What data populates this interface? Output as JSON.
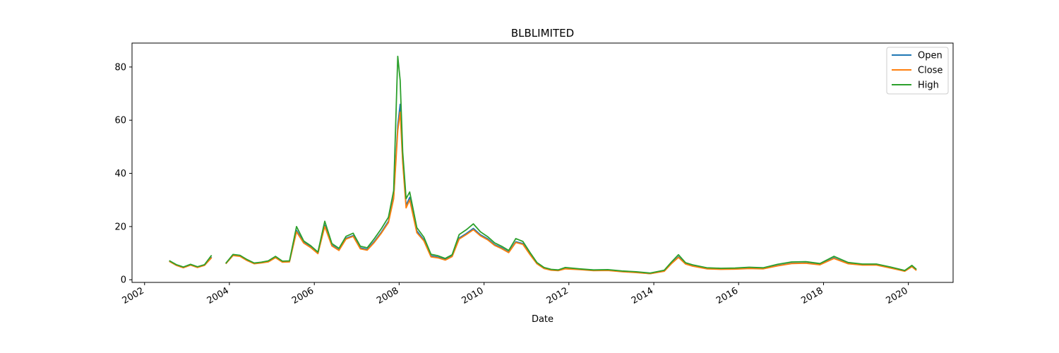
{
  "chart_data": {
    "type": "line",
    "title": "BLBLIMITED",
    "xlabel": "Date",
    "ylabel": "",
    "xlim": [
      "2001-09-15",
      "2021-01-20"
    ],
    "ylim": [
      -1.0,
      89.0
    ],
    "x_ticks": [
      "2002",
      "2004",
      "2006",
      "2008",
      "2010",
      "2012",
      "2014",
      "2016",
      "2018",
      "2020"
    ],
    "y_ticks": [
      0,
      20,
      40,
      60,
      80
    ],
    "legend_position": "top-right",
    "grid": false,
    "colors": {
      "Open": "#1f77b4",
      "Close": "#ff7f0e",
      "High": "#2ca02c"
    },
    "data_gaps": [
      [
        "2003-09-01",
        "2003-12-01"
      ]
    ],
    "dates": [
      "2002-08-01",
      "2002-10-01",
      "2002-12-01",
      "2003-02-01",
      "2003-04-01",
      "2003-06-01",
      "2003-08-01",
      "2003-12-01",
      "2004-02-01",
      "2004-04-01",
      "2004-06-01",
      "2004-08-01",
      "2004-10-01",
      "2004-12-01",
      "2005-02-01",
      "2005-04-01",
      "2005-06-01",
      "2005-08-01",
      "2005-10-01",
      "2005-12-01",
      "2006-02-01",
      "2006-04-01",
      "2006-06-01",
      "2006-08-01",
      "2006-10-01",
      "2006-12-01",
      "2007-02-01",
      "2007-04-01",
      "2007-06-01",
      "2007-08-01",
      "2007-10-01",
      "2007-11-15",
      "2007-12-20",
      "2008-01-10",
      "2008-02-01",
      "2008-03-01",
      "2008-04-01",
      "2008-06-01",
      "2008-08-01",
      "2008-10-01",
      "2008-12-01",
      "2009-02-01",
      "2009-04-01",
      "2009-06-01",
      "2009-08-01",
      "2009-10-01",
      "2009-12-01",
      "2010-02-01",
      "2010-04-01",
      "2010-06-01",
      "2010-08-01",
      "2010-10-01",
      "2010-12-01",
      "2011-02-01",
      "2011-04-01",
      "2011-06-01",
      "2011-08-01",
      "2011-10-01",
      "2011-12-01",
      "2012-04-01",
      "2012-08-01",
      "2012-12-01",
      "2013-04-01",
      "2013-08-01",
      "2013-12-01",
      "2014-04-01",
      "2014-06-01",
      "2014-08-01",
      "2014-10-01",
      "2014-12-01",
      "2015-04-01",
      "2015-08-01",
      "2015-12-01",
      "2016-04-01",
      "2016-08-01",
      "2016-12-01",
      "2017-04-01",
      "2017-08-01",
      "2017-12-01",
      "2018-04-01",
      "2018-08-01",
      "2018-12-01",
      "2019-04-01",
      "2019-08-01",
      "2019-12-01",
      "2020-02-01",
      "2020-03-10"
    ],
    "series": [
      {
        "name": "Open",
        "values": [
          7.0,
          5.5,
          4.6,
          5.6,
          4.7,
          5.5,
          8.5,
          6.0,
          9.2,
          8.9,
          7.3,
          6.1,
          6.4,
          6.8,
          8.4,
          6.7,
          6.8,
          18.6,
          14.1,
          12.3,
          10.0,
          20.5,
          13.0,
          11.2,
          15.6,
          16.6,
          12.0,
          11.4,
          14.4,
          17.9,
          22.0,
          31.0,
          58.0,
          66.0,
          45.0,
          28.0,
          31.0,
          18.4,
          15.0,
          9.0,
          8.5,
          7.6,
          8.9,
          15.7,
          17.4,
          19.3,
          16.9,
          15.4,
          13.2,
          12.0,
          10.4,
          14.3,
          13.6,
          9.6,
          6.1,
          4.3,
          3.7,
          3.5,
          4.2,
          3.9,
          3.5,
          3.6,
          3.1,
          2.8,
          2.3,
          3.3,
          6.1,
          8.6,
          6.0,
          5.2,
          4.2,
          4.0,
          4.1,
          4.3,
          4.2,
          5.3,
          6.2,
          6.3,
          5.7,
          8.2,
          6.1,
          5.6,
          5.6,
          4.5,
          3.3,
          5.0,
          3.6
        ]
      },
      {
        "name": "Close",
        "values": [
          6.9,
          5.4,
          4.5,
          5.5,
          4.6,
          5.4,
          8.3,
          6.0,
          9.1,
          8.8,
          7.2,
          6.0,
          6.3,
          6.7,
          8.3,
          6.6,
          6.7,
          18.0,
          13.8,
          12.1,
          9.8,
          20.0,
          12.7,
          11.0,
          15.3,
          16.3,
          11.6,
          11.1,
          14.0,
          17.5,
          21.5,
          30.5,
          56.0,
          63.0,
          44.0,
          27.0,
          30.0,
          17.7,
          14.6,
          8.6,
          8.2,
          7.4,
          8.7,
          15.3,
          17.0,
          18.8,
          16.5,
          15.0,
          12.9,
          11.7,
          10.2,
          14.0,
          13.3,
          9.4,
          6.0,
          4.2,
          3.6,
          3.4,
          4.1,
          3.8,
          3.4,
          3.5,
          3.0,
          2.7,
          2.3,
          3.2,
          6.0,
          8.4,
          5.9,
          5.1,
          4.1,
          3.9,
          4.0,
          4.2,
          4.1,
          5.2,
          6.1,
          6.2,
          5.6,
          8.0,
          6.0,
          5.5,
          5.5,
          4.4,
          3.2,
          4.9,
          3.5
        ]
      },
      {
        "name": "High",
        "values": [
          7.2,
          5.7,
          4.8,
          5.8,
          4.9,
          5.7,
          9.2,
          6.2,
          9.5,
          9.2,
          7.6,
          6.3,
          6.6,
          7.1,
          8.8,
          7.0,
          7.1,
          20.0,
          14.6,
          12.8,
          10.4,
          22.0,
          13.6,
          11.8,
          16.3,
          17.5,
          12.6,
          12.0,
          15.4,
          19.2,
          23.5,
          33.5,
          84.0,
          75.0,
          48.0,
          30.5,
          33.0,
          19.6,
          16.0,
          9.6,
          9.0,
          8.0,
          9.4,
          17.0,
          18.8,
          21.0,
          18.0,
          16.2,
          13.9,
          12.6,
          11.0,
          15.5,
          14.4,
          10.2,
          6.5,
          4.6,
          3.9,
          3.7,
          4.6,
          4.1,
          3.7,
          3.8,
          3.3,
          3.0,
          2.5,
          3.6,
          6.6,
          9.4,
          6.4,
          5.6,
          4.5,
          4.3,
          4.4,
          4.7,
          4.5,
          5.8,
          6.7,
          6.8,
          6.1,
          8.8,
          6.5,
          5.9,
          5.9,
          4.8,
          3.5,
          5.4,
          3.9
        ]
      }
    ]
  }
}
